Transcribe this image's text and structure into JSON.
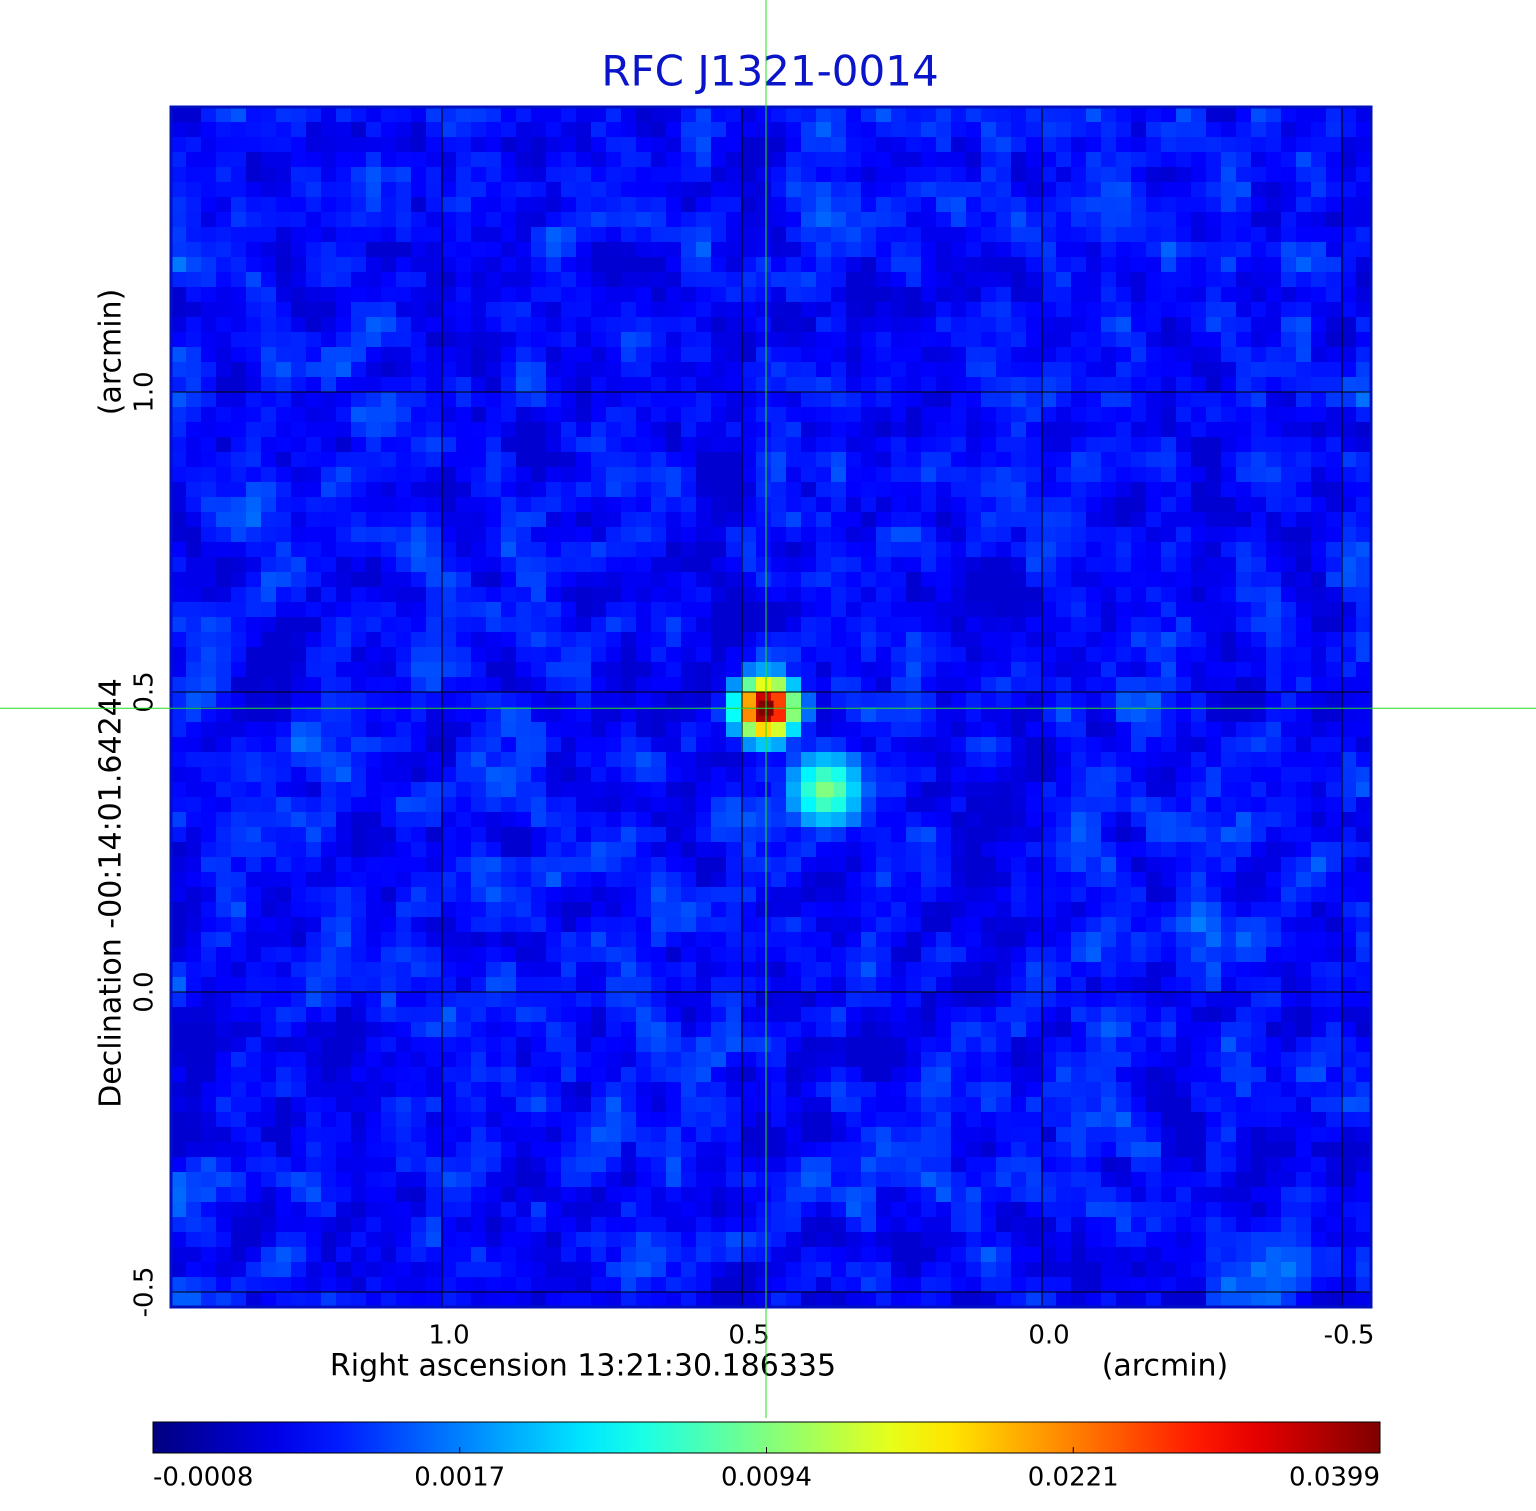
{
  "chart_data": {
    "type": "image",
    "title": "RFC J1321-0014",
    "x_label": "Right ascension  13:21:30.186335",
    "x_unit": "(arcmin)",
    "y_label": "Declination  -00:14:01.64244",
    "y_unit": "(arcmin)",
    "xlim": [
      1.4517,
      -0.5483
    ],
    "ylim": [
      -0.525,
      1.475
    ],
    "xticks": [
      {
        "value": 1,
        "label": "1.0"
      },
      0.5,
      {
        "value": 0,
        "label": "0.0"
      },
      -0.5
    ],
    "yticks": [
      {
        "value": 1,
        "label": "1.0"
      },
      0.5,
      {
        "value": 0,
        "label": "0.0"
      },
      -0.5
    ],
    "grid": true,
    "colormap": "jet",
    "colorbar_ticks": [
      -0.0008,
      0.0017,
      0.0094,
      0.0221,
      0.0399
    ],
    "sources": [
      {
        "x": 0.46,
        "y": 0.473,
        "value": 0.0399
      },
      {
        "x": 0.36,
        "y": 0.337,
        "value": 0.0094
      }
    ],
    "crosshair": {
      "x": 0.46,
      "y": 0.473,
      "color": "#22dd22"
    }
  }
}
